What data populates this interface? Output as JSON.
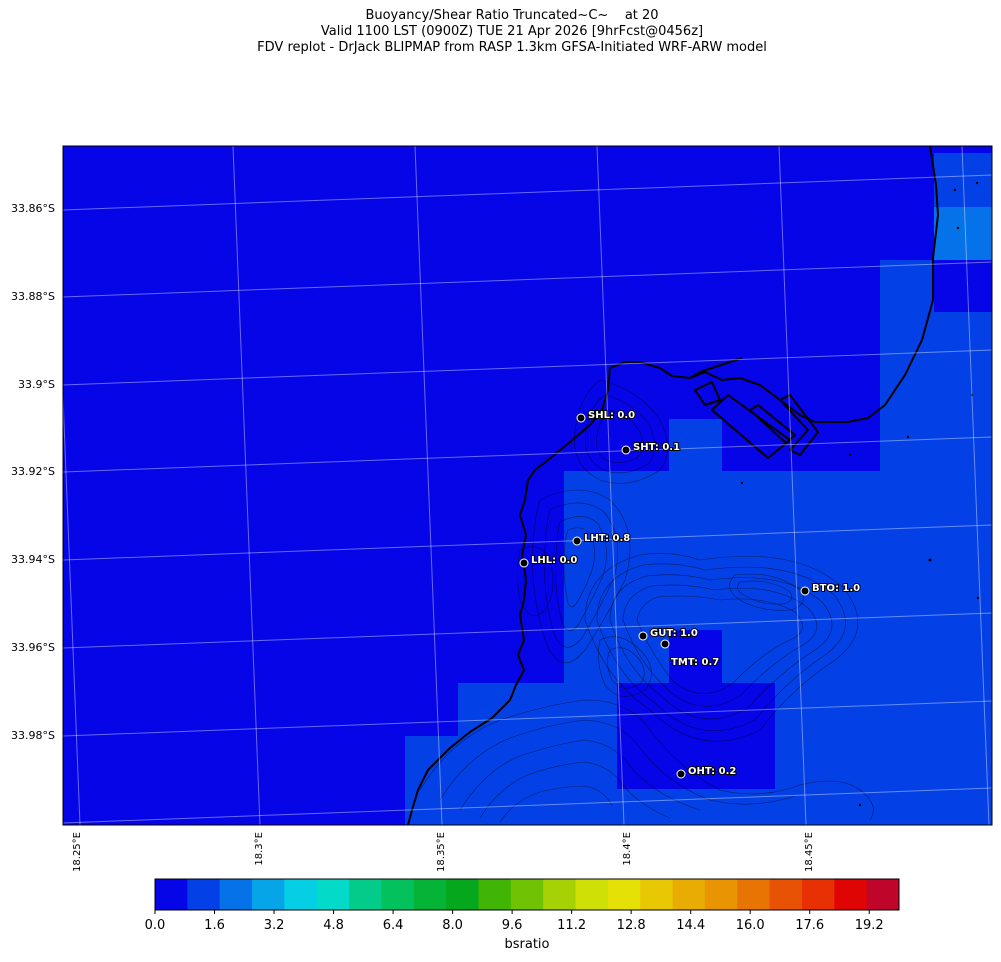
{
  "title": {
    "line1": "Buoyancy/Shear Ratio Truncated~C~    at 20",
    "line2": "Valid 1100 LST (0900Z) TUE 21 Apr 2026 [9hrFcst@0456z]",
    "line3": "FDV replot - DrJack BLIPMAP from RASP 1.3km GFSA-Initiated WRF-ARW model"
  },
  "lat_labels": [
    "33.86°S",
    "33.88°S",
    "33.9°S",
    "33.92°S",
    "33.94°S",
    "33.96°S",
    "33.98°S"
  ],
  "lon_labels": [
    "18.25°E",
    "18.3°E",
    "18.35°E",
    "18.4°E",
    "18.45°E"
  ],
  "stations": [
    {
      "code": "SHL",
      "value": "0.0",
      "label": "SHL: 0.0"
    },
    {
      "code": "SHT",
      "value": "0.1",
      "label": "SHT: 0.1"
    },
    {
      "code": "LHT",
      "value": "0.8",
      "label": "LHT: 0.8"
    },
    {
      "code": "LHL",
      "value": "0.0",
      "label": "LHL: 0.0"
    },
    {
      "code": "BTO",
      "value": "1.0",
      "label": "BTO: 1.0"
    },
    {
      "code": "GUT",
      "value": "1.0",
      "label": "GUT: 1.0"
    },
    {
      "code": "TMT",
      "value": "0.7",
      "label": "TMT: 0.7"
    },
    {
      "code": "OHT",
      "value": "0.2",
      "label": "OHT: 0.2"
    }
  ],
  "colorbar": {
    "label": "bsratio",
    "tick_labels": [
      "0.0",
      "1.6",
      "3.2",
      "4.8",
      "6.4",
      "8.0",
      "9.6",
      "11.2",
      "12.8",
      "14.4",
      "16.0",
      "17.6",
      "19.2"
    ],
    "range": [
      0.0,
      20.0
    ],
    "colors": [
      "#0505e8",
      "#0340e6",
      "#0572ea",
      "#05a5e8",
      "#05cfe5",
      "#03dbc8",
      "#03cc8a",
      "#03c25e",
      "#05b336",
      "#05a81c",
      "#40b505",
      "#70c205",
      "#a5d105",
      "#cee005",
      "#e5e005",
      "#e8c803",
      "#e8ac03",
      "#e89403",
      "#e87403",
      "#e85205",
      "#e83005",
      "#e00505",
      "#c0052a"
    ]
  },
  "colors": {
    "sea_fill": "#0505e8",
    "low_fill": "#0340e6",
    "mid_fill": "#0572ea"
  }
}
